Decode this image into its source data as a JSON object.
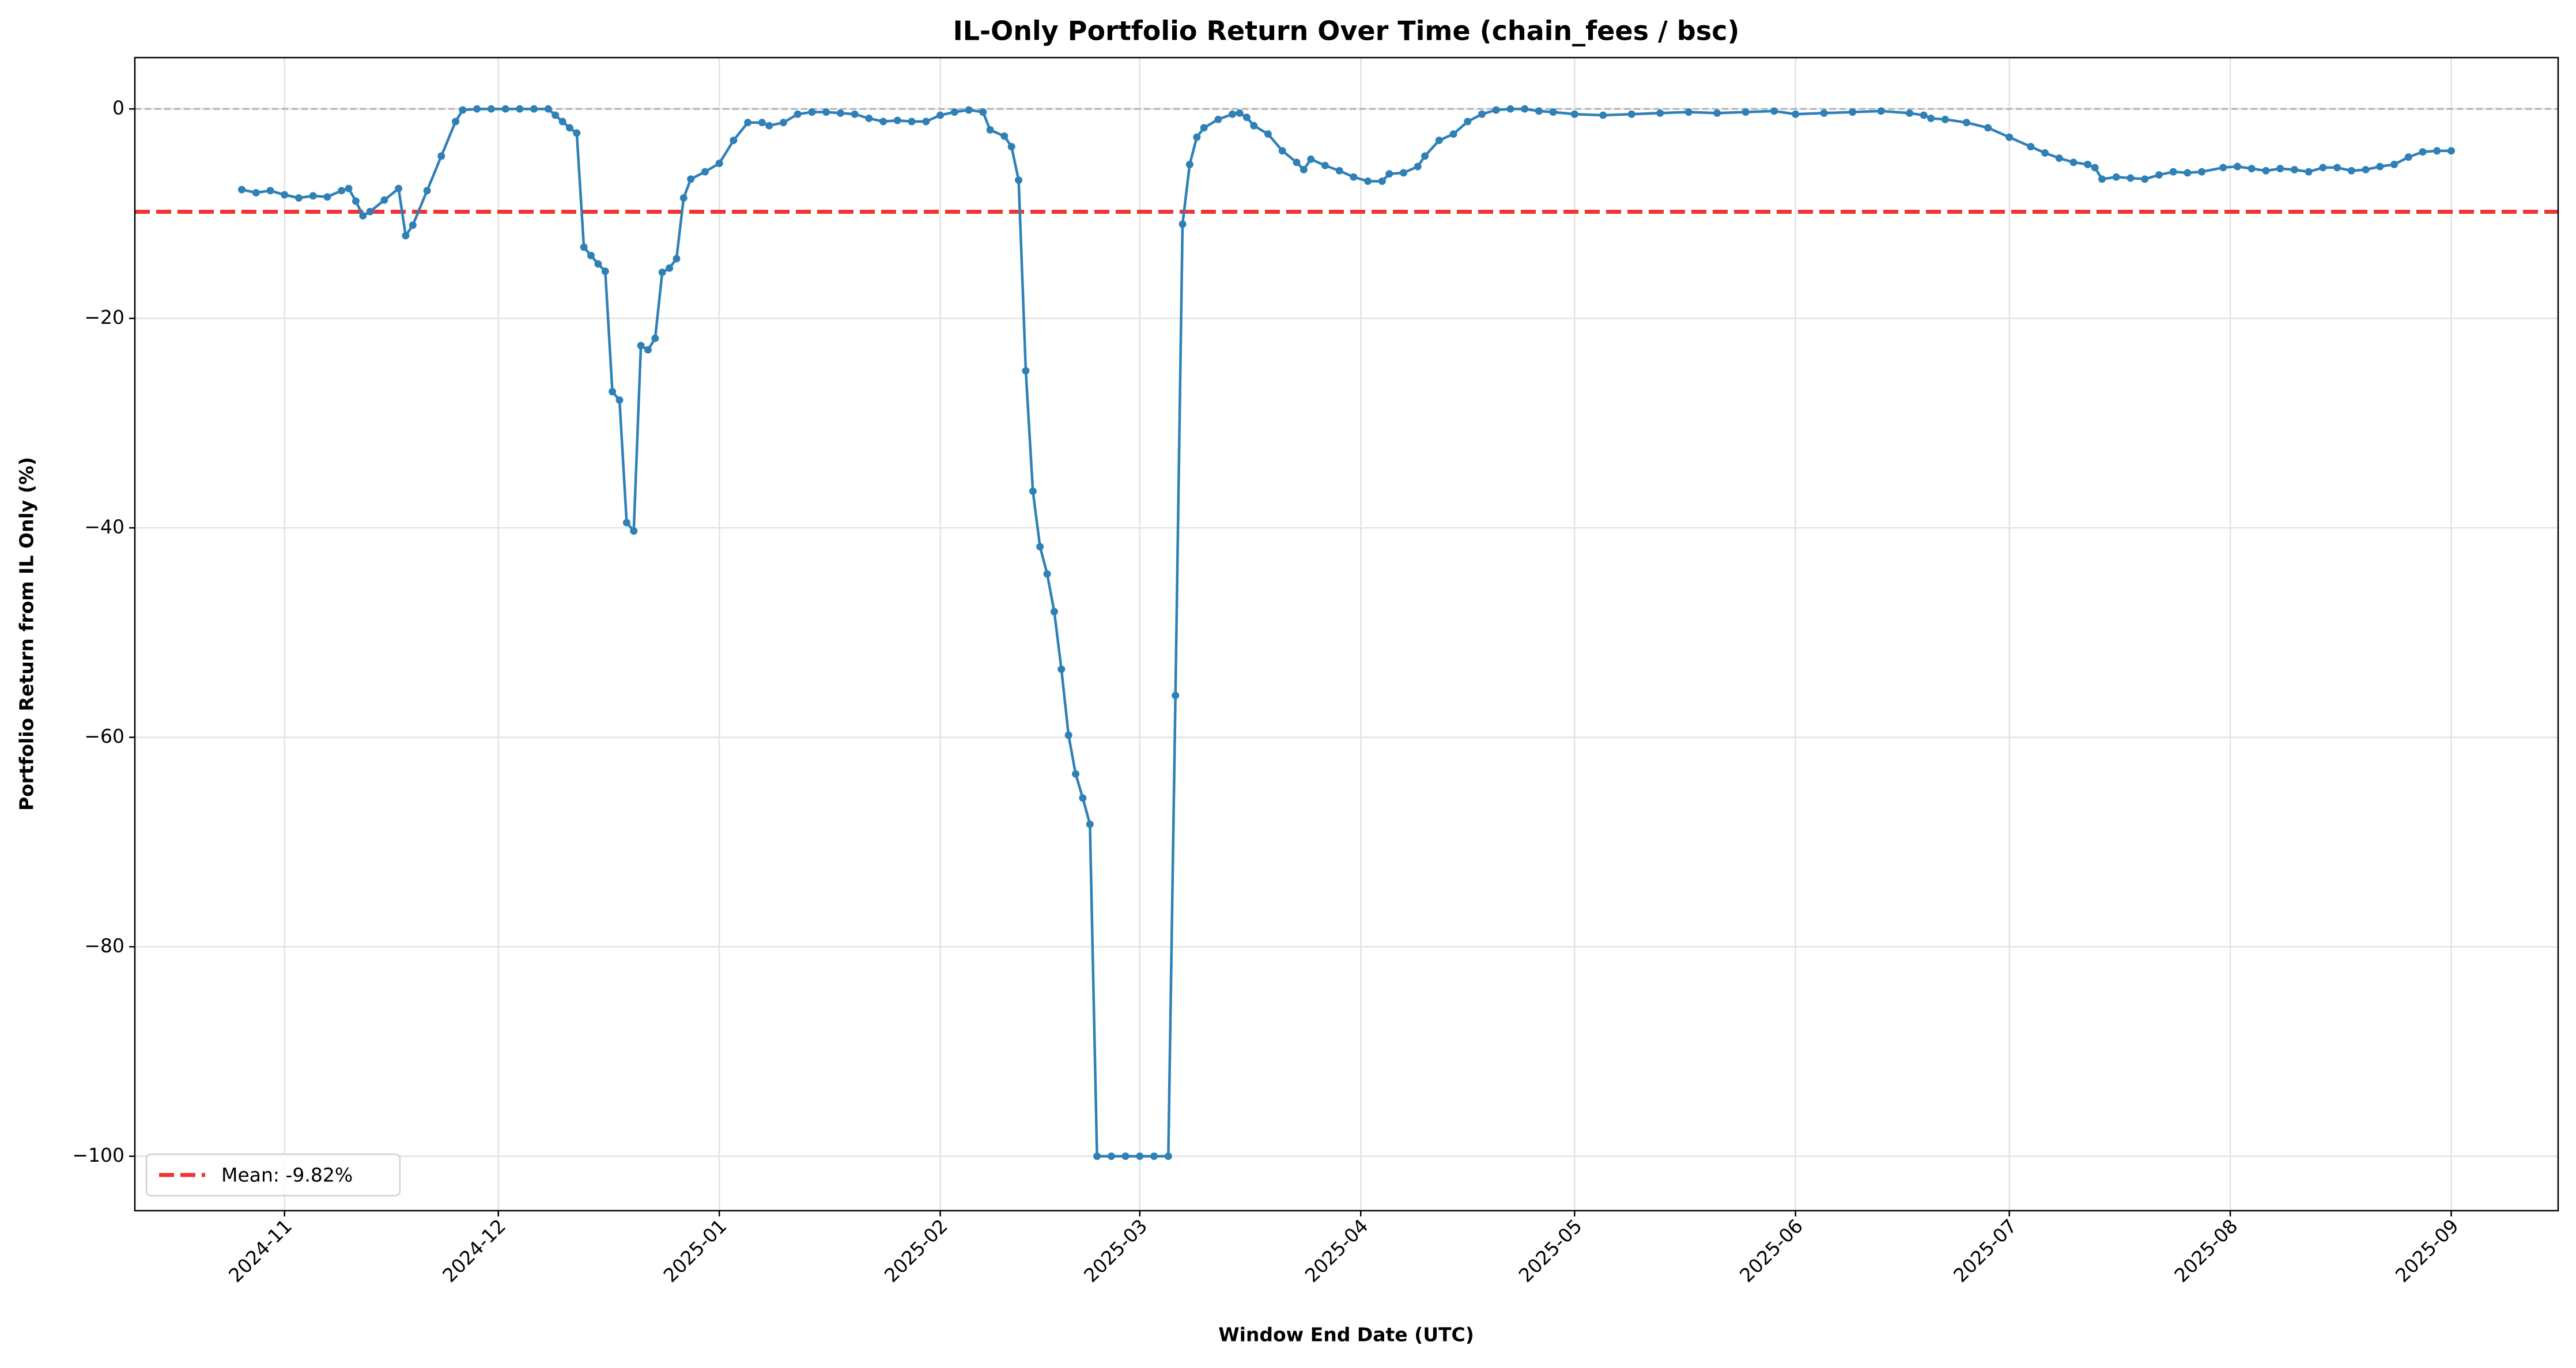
{
  "chart_data": {
    "type": "line",
    "title": "IL-Only Portfolio Return Over Time (chain_fees / bsc)",
    "x_label": "Window End Date (UTC)",
    "y_label": "Portfolio Return from IL Only (%)",
    "x": [
      "2024-10-26",
      "2024-10-28",
      "2024-10-30",
      "2024-11-01",
      "2024-11-03",
      "2024-11-05",
      "2024-11-07",
      "2024-11-09",
      "2024-11-10",
      "2024-11-11",
      "2024-11-12",
      "2024-11-13",
      "2024-11-15",
      "2024-11-17",
      "2024-11-18",
      "2024-11-19",
      "2024-11-21",
      "2024-11-23",
      "2024-11-25",
      "2024-11-26",
      "2024-11-28",
      "2024-11-30",
      "2024-12-02",
      "2024-12-04",
      "2024-12-06",
      "2024-12-08",
      "2024-12-09",
      "2024-12-10",
      "2024-12-11",
      "2024-12-12",
      "2024-12-13",
      "2024-12-14",
      "2024-12-15",
      "2024-12-16",
      "2024-12-17",
      "2024-12-18",
      "2024-12-19",
      "2024-12-20",
      "2024-12-21",
      "2024-12-22",
      "2024-12-23",
      "2024-12-24",
      "2024-12-25",
      "2024-12-26",
      "2024-12-27",
      "2024-12-28",
      "2024-12-30",
      "2025-01-01",
      "2025-01-03",
      "2025-01-05",
      "2025-01-07",
      "2025-01-08",
      "2025-01-10",
      "2025-01-12",
      "2025-01-14",
      "2025-01-16",
      "2025-01-18",
      "2025-01-20",
      "2025-01-22",
      "2025-01-24",
      "2025-01-26",
      "2025-01-28",
      "2025-01-30",
      "2025-02-01",
      "2025-02-03",
      "2025-02-05",
      "2025-02-07",
      "2025-02-08",
      "2025-02-10",
      "2025-02-11",
      "2025-02-12",
      "2025-02-13",
      "2025-02-14",
      "2025-02-15",
      "2025-02-16",
      "2025-02-17",
      "2025-02-18",
      "2025-02-19",
      "2025-02-20",
      "2025-02-21",
      "2025-02-22",
      "2025-02-23",
      "2025-02-25",
      "2025-02-27",
      "2025-03-01",
      "2025-03-03",
      "2025-03-05",
      "2025-03-06",
      "2025-03-07",
      "2025-03-08",
      "2025-03-09",
      "2025-03-10",
      "2025-03-12",
      "2025-03-14",
      "2025-03-15",
      "2025-03-16",
      "2025-03-17",
      "2025-03-19",
      "2025-03-21",
      "2025-03-23",
      "2025-03-24",
      "2025-03-25",
      "2025-03-27",
      "2025-03-29",
      "2025-03-31",
      "2025-04-02",
      "2025-04-04",
      "2025-04-05",
      "2025-04-07",
      "2025-04-09",
      "2025-04-10",
      "2025-04-12",
      "2025-04-14",
      "2025-04-16",
      "2025-04-18",
      "2025-04-20",
      "2025-04-22",
      "2025-04-24",
      "2025-04-26",
      "2025-04-28",
      "2025-05-01",
      "2025-05-05",
      "2025-05-09",
      "2025-05-13",
      "2025-05-17",
      "2025-05-21",
      "2025-05-25",
      "2025-05-29",
      "2025-06-01",
      "2025-06-05",
      "2025-06-09",
      "2025-06-13",
      "2025-06-17",
      "2025-06-19",
      "2025-06-20",
      "2025-06-22",
      "2025-06-25",
      "2025-06-28",
      "2025-07-01",
      "2025-07-04",
      "2025-07-06",
      "2025-07-08",
      "2025-07-10",
      "2025-07-12",
      "2025-07-13",
      "2025-07-14",
      "2025-07-16",
      "2025-07-18",
      "2025-07-20",
      "2025-07-22",
      "2025-07-24",
      "2025-07-26",
      "2025-07-28",
      "2025-07-31",
      "2025-08-02",
      "2025-08-04",
      "2025-08-06",
      "2025-08-08",
      "2025-08-10",
      "2025-08-12",
      "2025-08-14",
      "2025-08-16",
      "2025-08-18",
      "2025-08-20",
      "2025-08-22",
      "2025-08-24",
      "2025-08-26",
      "2025-08-28",
      "2025-08-30",
      "2025-09-01"
    ],
    "values": [
      -7.7,
      -8.0,
      -7.8,
      -8.2,
      -8.5,
      -8.3,
      -8.4,
      -7.8,
      -7.6,
      -8.8,
      -10.2,
      -9.8,
      -8.7,
      -7.6,
      -12.1,
      -11.1,
      -7.8,
      -4.5,
      -1.2,
      -0.1,
      0,
      0,
      0,
      0,
      0,
      0,
      -0.6,
      -1.2,
      -1.8,
      -2.3,
      -13.2,
      -14.0,
      -14.8,
      -15.5,
      -27.0,
      -27.8,
      -39.5,
      -40.3,
      -22.6,
      -23.0,
      -21.9,
      -15.6,
      -15.2,
      -14.3,
      -8.5,
      -6.7,
      -6.0,
      -5.2,
      -3.0,
      -1.3,
      -1.3,
      -1.6,
      -1.3,
      -0.5,
      -0.3,
      -0.3,
      -0.4,
      -0.5,
      -0.9,
      -1.2,
      -1.1,
      -1.2,
      -1.2,
      -0.6,
      -0.3,
      -0.1,
      -0.3,
      -2.0,
      -2.6,
      -3.6,
      -6.8,
      -25.0,
      -36.5,
      -41.8,
      -44.4,
      -48.0,
      -53.5,
      -59.8,
      -63.5,
      -65.8,
      -68.3,
      -100,
      -100,
      -100,
      -100,
      -100,
      -100,
      -56.0,
      -11.0,
      -5.3,
      -2.7,
      -1.8,
      -1.0,
      -0.5,
      -0.4,
      -0.8,
      -1.6,
      -2.4,
      -4.0,
      -5.1,
      -5.8,
      -4.8,
      -5.4,
      -5.9,
      -6.5,
      -6.9,
      -6.9,
      -6.2,
      -6.1,
      -5.5,
      -4.5,
      -3.0,
      -2.4,
      -1.2,
      -0.5,
      -0.1,
      0,
      0,
      -0.2,
      -0.3,
      -0.5,
      -0.6,
      -0.5,
      -0.4,
      -0.3,
      -0.4,
      -0.3,
      -0.2,
      -0.5,
      -0.4,
      -0.3,
      -0.2,
      -0.4,
      -0.6,
      -0.9,
      -1.0,
      -1.3,
      -1.8,
      -2.7,
      -3.6,
      -4.2,
      -4.7,
      -5.1,
      -5.3,
      -5.6,
      -6.7,
      -6.5,
      -6.6,
      -6.7,
      -6.3,
      -6.0,
      -6.1,
      -6.0,
      -5.6,
      -5.5,
      -5.7,
      -5.9,
      -5.7,
      -5.8,
      -6.0,
      -5.6,
      -5.6,
      -5.9,
      -5.8,
      -5.5,
      -5.3,
      -4.6,
      -4.1,
      -4.0,
      -4.0
    ],
    "color": "#2f80b7",
    "mean_line": {
      "value": -9.82,
      "label": "Mean: -9.82%",
      "color": "#f03535"
    },
    "zero_line": {
      "value": 0,
      "color": "#b0b0b0"
    },
    "legend": "lower left",
    "grid": true,
    "xlim": [
      "2024-10-11",
      "2025-09-16"
    ],
    "xticks": [
      "2024-11",
      "2024-12",
      "2025-01",
      "2025-02",
      "2025-03",
      "2025-04",
      "2025-05",
      "2025-06",
      "2025-07",
      "2025-08",
      "2025-09"
    ],
    "ylim": [
      -105.2,
      4.9
    ],
    "yticks": [
      {
        "value": -100,
        "label": "−100"
      },
      {
        "value": -80,
        "label": "−80"
      },
      {
        "value": -60,
        "label": "−60"
      },
      {
        "value": -40,
        "label": "−40"
      },
      {
        "value": -20,
        "label": "−20"
      },
      0
    ]
  }
}
